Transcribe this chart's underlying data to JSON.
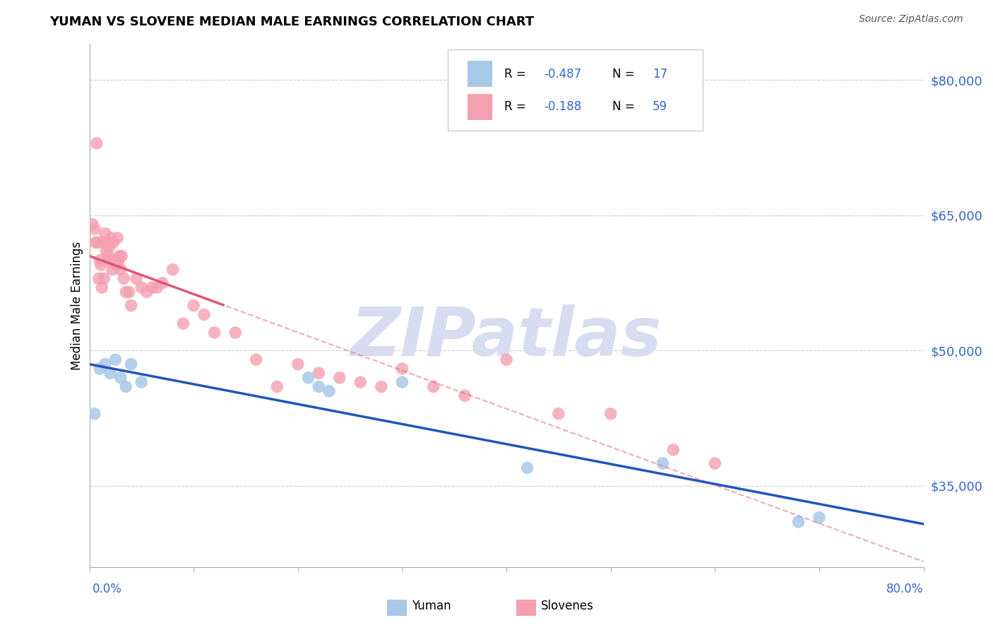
{
  "title": "YUMAN VS SLOVENE MEDIAN MALE EARNINGS CORRELATION CHART",
  "source": "Source: ZipAtlas.com",
  "ylabel": "Median Male Earnings",
  "ytick_labels": [
    "$35,000",
    "$50,000",
    "$65,000",
    "$80,000"
  ],
  "ytick_values": [
    35000,
    50000,
    65000,
    80000
  ],
  "ymin": 26000,
  "ymax": 84000,
  "xmin": 0.0,
  "xmax": 0.8,
  "blue_color": "#A8C8E8",
  "pink_color": "#F4A0B0",
  "trend_blue_color": "#2255BB",
  "trend_pink_color": "#E05575",
  "watermark": "ZIPatlas",
  "watermark_color": "#D8DCF0",
  "r_blue": "-0.487",
  "n_blue": "17",
  "r_pink": "-0.188",
  "n_pink": "59",
  "legend_label_blue": "Yuman",
  "legend_label_pink": "Slovenes",
  "text_color_blue": "#3366CC",
  "blue_x": [
    0.005,
    0.01,
    0.015,
    0.02,
    0.025,
    0.03,
    0.035,
    0.04,
    0.05,
    0.21,
    0.22,
    0.23,
    0.3,
    0.42,
    0.55,
    0.68,
    0.7
  ],
  "blue_y": [
    43000,
    48000,
    48500,
    47500,
    49000,
    47000,
    46000,
    48500,
    46500,
    47000,
    46000,
    45500,
    46500,
    37000,
    37500,
    31000,
    31500
  ],
  "pink_x": [
    0.003,
    0.005,
    0.006,
    0.007,
    0.008,
    0.009,
    0.01,
    0.011,
    0.012,
    0.013,
    0.014,
    0.015,
    0.016,
    0.017,
    0.018,
    0.019,
    0.02,
    0.021,
    0.022,
    0.023,
    0.024,
    0.025,
    0.026,
    0.027,
    0.028,
    0.029,
    0.03,
    0.031,
    0.033,
    0.035,
    0.038,
    0.04,
    0.045,
    0.05,
    0.055,
    0.06,
    0.065,
    0.07,
    0.08,
    0.09,
    0.1,
    0.11,
    0.12,
    0.14,
    0.16,
    0.18,
    0.2,
    0.22,
    0.24,
    0.26,
    0.28,
    0.3,
    0.33,
    0.36,
    0.4,
    0.45,
    0.5,
    0.56,
    0.6
  ],
  "pink_y": [
    64000,
    63500,
    62000,
    73000,
    62000,
    58000,
    60000,
    59500,
    57000,
    62000,
    58000,
    63000,
    61000,
    62000,
    60500,
    61500,
    60000,
    62500,
    59000,
    62000,
    60000,
    60000,
    59500,
    62500,
    60000,
    60500,
    59000,
    60500,
    58000,
    56500,
    56500,
    55000,
    58000,
    57000,
    56500,
    57000,
    57000,
    57500,
    59000,
    53000,
    55000,
    54000,
    52000,
    52000,
    49000,
    46000,
    48500,
    47500,
    47000,
    46500,
    46000,
    48000,
    46000,
    45000,
    49000,
    43000,
    43000,
    39000,
    37500
  ]
}
